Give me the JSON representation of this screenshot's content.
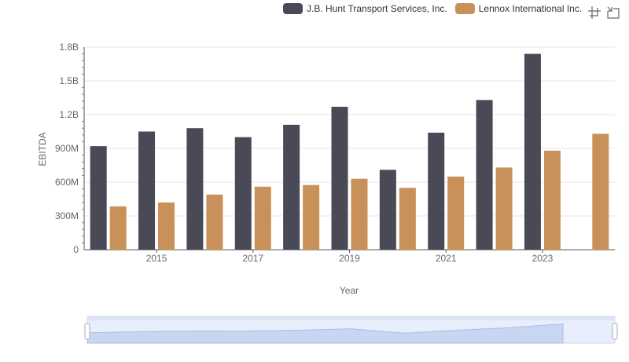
{
  "legend": {
    "items": [
      {
        "label": "J.B. Hunt Transport Services, Inc.",
        "color": "#4a4a57"
      },
      {
        "label": "Lennox International Inc.",
        "color": "#c9915a"
      }
    ]
  },
  "toolbox": {
    "icons": [
      "zoom-icon",
      "zoom-reset-icon"
    ]
  },
  "chart_data": {
    "type": "bar",
    "title": "",
    "xlabel": "Year",
    "ylabel": "EBITDA",
    "categories": [
      "2014",
      "2015",
      "2016",
      "2017",
      "2018",
      "2019",
      "2020",
      "2021",
      "2022",
      "2023",
      "2024"
    ],
    "x_tick_labels": [
      "2015",
      "2017",
      "2019",
      "2021",
      "2023"
    ],
    "y_tick_labels": [
      "0",
      "300M",
      "600M",
      "900M",
      "1.2B",
      "1.5B",
      "1.8B"
    ],
    "ylim": [
      0,
      1800000000
    ],
    "grid": true,
    "legend_position": "top-right",
    "series": [
      {
        "name": "J.B. Hunt Transport Services, Inc.",
        "color": "#4a4a57",
        "values": [
          920000000,
          1050000000,
          1080000000,
          1000000000,
          1110000000,
          1270000000,
          710000000,
          1040000000,
          1330000000,
          1740000000,
          null
        ]
      },
      {
        "name": "Lennox International Inc.",
        "color": "#c9915a",
        "values": [
          385000000,
          420000000,
          490000000,
          560000000,
          575000000,
          630000000,
          550000000,
          650000000,
          730000000,
          880000000,
          1030000000
        ]
      }
    ]
  }
}
